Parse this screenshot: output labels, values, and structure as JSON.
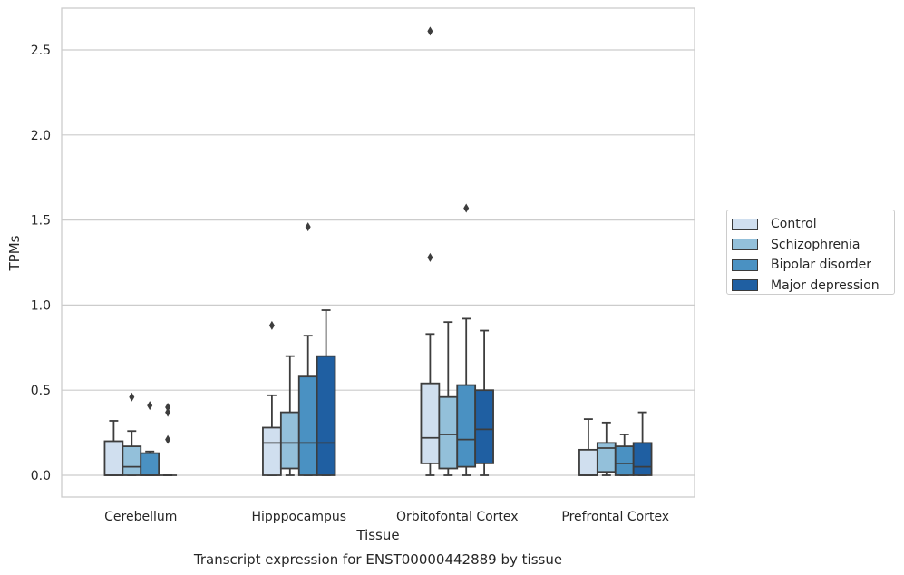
{
  "chart_data": {
    "type": "box",
    "title": "",
    "caption": "Transcript expression for ENST00000442889 by tissue",
    "xlabel": "Tissue",
    "ylabel": "TPMs",
    "ylim": [
      -0.13,
      2.62
    ],
    "yticks": [
      0.0,
      0.5,
      1.0,
      1.5,
      2.0,
      2.5
    ],
    "ytick_labels": [
      "0.0",
      "0.5",
      "1.0",
      "1.5",
      "2.0",
      "2.5"
    ],
    "grid": "horizontal",
    "legend_position": "right",
    "categories": [
      "Cerebellum",
      "Hipppocampus",
      "Orbitofontal Cortex",
      "Prefrontal Cortex"
    ],
    "series": [
      {
        "name": "Control",
        "color": "#d0dfef",
        "boxes": [
          {
            "whisker_low": 0.0,
            "q1": 0.0,
            "median": 0.0,
            "q3": 0.2,
            "whisker_high": 0.32,
            "outliers": []
          },
          {
            "whisker_low": 0.0,
            "q1": 0.0,
            "median": 0.19,
            "q3": 0.28,
            "whisker_high": 0.47,
            "outliers": [
              0.88
            ]
          },
          {
            "whisker_low": 0.0,
            "q1": 0.07,
            "median": 0.22,
            "q3": 0.54,
            "whisker_high": 0.83,
            "outliers": [
              1.28,
              2.61
            ]
          },
          {
            "whisker_low": 0.0,
            "q1": 0.0,
            "median": 0.0,
            "q3": 0.15,
            "whisker_high": 0.33,
            "outliers": []
          }
        ]
      },
      {
        "name": "Schizophrenia",
        "color": "#93c0da",
        "boxes": [
          {
            "whisker_low": 0.0,
            "q1": 0.0,
            "median": 0.05,
            "q3": 0.17,
            "whisker_high": 0.26,
            "outliers": [
              0.46
            ]
          },
          {
            "whisker_low": 0.0,
            "q1": 0.04,
            "median": 0.19,
            "q3": 0.37,
            "whisker_high": 0.7,
            "outliers": []
          },
          {
            "whisker_low": 0.0,
            "q1": 0.04,
            "median": 0.24,
            "q3": 0.46,
            "whisker_high": 0.9,
            "outliers": []
          },
          {
            "whisker_low": 0.0,
            "q1": 0.02,
            "median": 0.16,
            "q3": 0.19,
            "whisker_high": 0.31,
            "outliers": []
          }
        ]
      },
      {
        "name": "Bipolar disorder",
        "color": "#4a91c2",
        "boxes": [
          {
            "whisker_low": 0.0,
            "q1": 0.0,
            "median": 0.0,
            "q3": 0.13,
            "whisker_high": 0.14,
            "outliers": [
              0.41
            ]
          },
          {
            "whisker_low": 0.0,
            "q1": 0.0,
            "median": 0.19,
            "q3": 0.58,
            "whisker_high": 0.82,
            "outliers": [
              1.46
            ]
          },
          {
            "whisker_low": 0.0,
            "q1": 0.05,
            "median": 0.21,
            "q3": 0.53,
            "whisker_high": 0.92,
            "outliers": [
              1.57
            ]
          },
          {
            "whisker_low": 0.0,
            "q1": 0.0,
            "median": 0.07,
            "q3": 0.17,
            "whisker_high": 0.24,
            "outliers": []
          }
        ]
      },
      {
        "name": "Major depression",
        "color": "#1f5fa2",
        "boxes": [
          {
            "whisker_low": 0.0,
            "q1": 0.0,
            "median": 0.0,
            "q3": 0.0,
            "whisker_high": 0.0,
            "outliers": [
              0.21,
              0.37,
              0.4
            ]
          },
          {
            "whisker_low": 0.0,
            "q1": 0.0,
            "median": 0.19,
            "q3": 0.7,
            "whisker_high": 0.97,
            "outliers": []
          },
          {
            "whisker_low": 0.0,
            "q1": 0.07,
            "median": 0.27,
            "q3": 0.5,
            "whisker_high": 0.85,
            "outliers": []
          },
          {
            "whisker_low": 0.0,
            "q1": 0.0,
            "median": 0.05,
            "q3": 0.19,
            "whisker_high": 0.37,
            "outliers": []
          }
        ]
      }
    ]
  }
}
